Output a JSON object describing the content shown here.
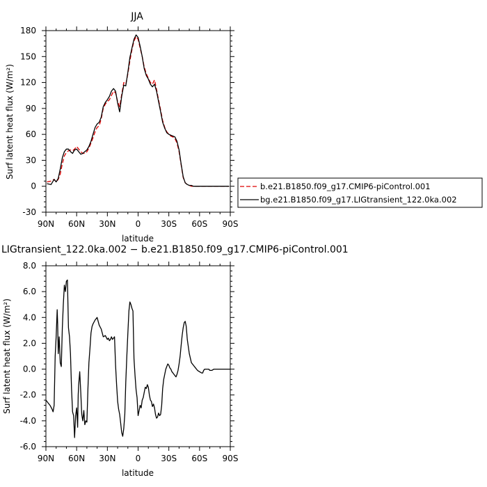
{
  "chart_data": [
    {
      "type": "line",
      "title": "JJA",
      "xlabel": "latitude",
      "ylabel": "Surf latent heat flux (W/m²)",
      "xlim": [
        90,
        -90
      ],
      "ylim": [
        -30,
        180
      ],
      "xtick_values": [
        90,
        60,
        30,
        0,
        -30,
        -60,
        -90
      ],
      "xtick_labels": [
        "90N",
        "60N",
        "30N",
        "0",
        "30S",
        "60S",
        "90S"
      ],
      "ytick_values": [
        -30,
        0,
        30,
        60,
        90,
        120,
        150,
        180
      ],
      "ytick_labels": [
        "-30",
        "0",
        "30",
        "60",
        "90",
        "120",
        "150",
        "180"
      ],
      "legend_position": "right",
      "series": [
        {
          "name": "b.e21.B1850.f09_g17.CMIP6-piControl.001",
          "color": "#dd0000",
          "dash": "dashed",
          "x": [
            89,
            85,
            82,
            80,
            78,
            76,
            74,
            72,
            70,
            68,
            66,
            64,
            62,
            60,
            58,
            56,
            54,
            52,
            50,
            48,
            46,
            44,
            42,
            40,
            38,
            36,
            34,
            32,
            30,
            28,
            26,
            24,
            22,
            20,
            18,
            16,
            14,
            12,
            10,
            8,
            6,
            4,
            2,
            0,
            -2,
            -4,
            -6,
            -8,
            -10,
            -12,
            -14,
            -16,
            -18,
            -20,
            -22,
            -24,
            -26,
            -28,
            -30,
            -32,
            -34,
            -36,
            -38,
            -40,
            -42,
            -44,
            -46,
            -48,
            -50,
            -52,
            -54,
            -56,
            -58,
            -60,
            -62,
            -64,
            -66,
            -68,
            -70,
            -72,
            -74,
            -76,
            -78,
            -80,
            -82,
            -85,
            -89
          ],
          "y": [
            5,
            6,
            8,
            5,
            8,
            14,
            26,
            35,
            39,
            41,
            42,
            41,
            43,
            46,
            43,
            40,
            38,
            38,
            40,
            44,
            50,
            56,
            63,
            68,
            70,
            78,
            90,
            95,
            98,
            100,
            105,
            110,
            108,
            98,
            92,
            106,
            120,
            118,
            130,
            145,
            158,
            168,
            173,
            170,
            160,
            150,
            138,
            130,
            125,
            120,
            118,
            123,
            112,
            100,
            88,
            76,
            68,
            63,
            60,
            58,
            57,
            55,
            50,
            40,
            25,
            10,
            4,
            2,
            1,
            0,
            0,
            0,
            0,
            0,
            0,
            0,
            0,
            0,
            0,
            0,
            0,
            0,
            0,
            0,
            0,
            0,
            0
          ]
        },
        {
          "name": "bg.e21.B1850.f09_g17.LIGtransient_122.0ka.002",
          "color": "#000000",
          "dash": "solid",
          "x": [
            89,
            85,
            82,
            80,
            78,
            76,
            74,
            72,
            70,
            68,
            66,
            64,
            62,
            60,
            58,
            56,
            54,
            52,
            50,
            48,
            46,
            44,
            42,
            40,
            38,
            36,
            34,
            32,
            30,
            28,
            26,
            24,
            22,
            20,
            18,
            16,
            14,
            12,
            10,
            8,
            6,
            4,
            2,
            0,
            -2,
            -4,
            -6,
            -8,
            -10,
            -12,
            -14,
            -16,
            -18,
            -20,
            -22,
            -24,
            -26,
            -28,
            -30,
            -32,
            -34,
            -36,
            -38,
            -40,
            -42,
            -44,
            -46,
            -48,
            -50,
            -52,
            -54,
            -56,
            -58,
            -60,
            -62,
            -64,
            -66,
            -68,
            -70,
            -72,
            -74,
            -76,
            -78,
            -80,
            -82,
            -85,
            -89
          ],
          "y": [
            3,
            2,
            8,
            5,
            9,
            20,
            33,
            40,
            43,
            43,
            40,
            38,
            42,
            43,
            40,
            37,
            38,
            40,
            42,
            46,
            52,
            60,
            68,
            72,
            74,
            80,
            92,
            97,
            100,
            104,
            110,
            113,
            110,
            96,
            86,
            104,
            117,
            116,
            132,
            149,
            160,
            170,
            175,
            172,
            162,
            150,
            136,
            128,
            124,
            118,
            115,
            118,
            110,
            98,
            86,
            74,
            67,
            62,
            60,
            59,
            58,
            57,
            52,
            42,
            26,
            11,
            4,
            2,
            1,
            1,
            0,
            0,
            0,
            0,
            0,
            0,
            0,
            0,
            0,
            0,
            0,
            0,
            0,
            0,
            0,
            0,
            0
          ]
        }
      ]
    },
    {
      "type": "line",
      "title": "LIGtransient_122.0ka.002 − b.e21.B1850.f09_g17.CMIP6-piControl.001",
      "xlabel": "latitude",
      "ylabel": "Surf latent heat flux (W/m²)",
      "xlim": [
        90,
        -90
      ],
      "ylim": [
        -6,
        8
      ],
      "xtick_values": [
        90,
        60,
        30,
        0,
        -30,
        -60,
        -90
      ],
      "xtick_labels": [
        "90N",
        "60N",
        "30N",
        "0",
        "30S",
        "60S",
        "90S"
      ],
      "ytick_values": [
        -6,
        -4,
        -2,
        0,
        2,
        4,
        6,
        8
      ],
      "ytick_labels": [
        "-6.0",
        "-4.0",
        "-2.0",
        "0.0",
        "2.0",
        "4.0",
        "6.0",
        "8.0"
      ],
      "series": [
        {
          "color": "#000000",
          "dash": "solid",
          "x": [
            90,
            88,
            86,
            84,
            83,
            82,
            81,
            80,
            79,
            78.5,
            78,
            77,
            76,
            75,
            74,
            73,
            72,
            71,
            70,
            69,
            68,
            67,
            66,
            65,
            64,
            63,
            62,
            61,
            60,
            59,
            58.5,
            58,
            57,
            56,
            55,
            54,
            53,
            52,
            51,
            50,
            49,
            48,
            47,
            46,
            45,
            44,
            42,
            40,
            38,
            36,
            34,
            32,
            30,
            29,
            28,
            27,
            26,
            25,
            24,
            23,
            22,
            21,
            20,
            19,
            18,
            17,
            16,
            15,
            14,
            13,
            12,
            11,
            10,
            9,
            8,
            7,
            6,
            5,
            4,
            3,
            2,
            1,
            0,
            -1,
            -2,
            -3,
            -4,
            -5,
            -6,
            -7,
            -8,
            -9,
            -10,
            -11,
            -12,
            -13,
            -14,
            -15,
            -16,
            -17,
            -18,
            -19,
            -20,
            -21,
            -22,
            -23,
            -24,
            -25,
            -26,
            -27,
            -28,
            -29,
            -30,
            -31,
            -32,
            -33,
            -34,
            -35,
            -36,
            -37,
            -38,
            -39,
            -40,
            -41,
            -42,
            -43,
            -44,
            -45,
            -46,
            -47,
            -48,
            -50,
            -52,
            -54,
            -56,
            -58,
            -60,
            -62,
            -63,
            -64,
            -65,
            -66,
            -67,
            -68,
            -69,
            -70,
            -72,
            -74,
            -76,
            -78,
            -80,
            -82,
            -84,
            -86,
            -88,
            -90
          ],
          "y": [
            -2.4,
            -2.6,
            -2.8,
            -3.1,
            -3.3,
            -2.8,
            1.0,
            2.5,
            4.6,
            3.5,
            1.2,
            2.5,
            0.5,
            0.2,
            3.2,
            5.0,
            6.5,
            6.0,
            6.8,
            6.9,
            3.2,
            2.5,
            1.2,
            -1.5,
            -3.3,
            -3.6,
            -5.3,
            -3.6,
            -3.0,
            -4.5,
            -2.0,
            -1.2,
            -0.2,
            -1.8,
            -3.5,
            -4.0,
            -3.2,
            -4.3,
            -4.0,
            -4.1,
            -1.5,
            0.5,
            1.6,
            2.8,
            3.3,
            3.5,
            3.8,
            4.0,
            3.4,
            3.1,
            2.5,
            2.6,
            2.3,
            2.4,
            2.2,
            2.3,
            2.5,
            2.3,
            2.4,
            2.5,
            0.3,
            -1.2,
            -2.5,
            -3.1,
            -3.5,
            -4.2,
            -4.9,
            -5.2,
            -4.6,
            -3.5,
            -1.0,
            1.0,
            2.8,
            4.5,
            5.2,
            5.0,
            4.7,
            4.5,
            0.8,
            -0.5,
            -1.6,
            -2.2,
            -3.6,
            -3.2,
            -2.8,
            -3.0,
            -2.4,
            -2.2,
            -1.8,
            -1.4,
            -1.5,
            -1.2,
            -1.4,
            -2.0,
            -2.4,
            -2.5,
            -2.9,
            -2.7,
            -3.0,
            -3.5,
            -3.8,
            -3.7,
            -3.4,
            -3.6,
            -3.5,
            -2.8,
            -1.5,
            -0.8,
            -0.4,
            0.0,
            0.2,
            0.4,
            0.3,
            0.1,
            0.0,
            -0.2,
            -0.3,
            -0.4,
            -0.5,
            -0.6,
            -0.4,
            -0.1,
            0.4,
            1.0,
            1.8,
            2.6,
            3.2,
            3.6,
            3.7,
            3.3,
            2.3,
            1.2,
            0.5,
            0.3,
            0.1,
            -0.1,
            -0.2,
            -0.3,
            -0.3,
            -0.1,
            0.0,
            0.0,
            0.0,
            0.0,
            0.0,
            -0.1,
            -0.1,
            0.0,
            0.0,
            0.0,
            0.0,
            0.0,
            0.0,
            0.0,
            0.0,
            0.0
          ]
        }
      ]
    }
  ]
}
